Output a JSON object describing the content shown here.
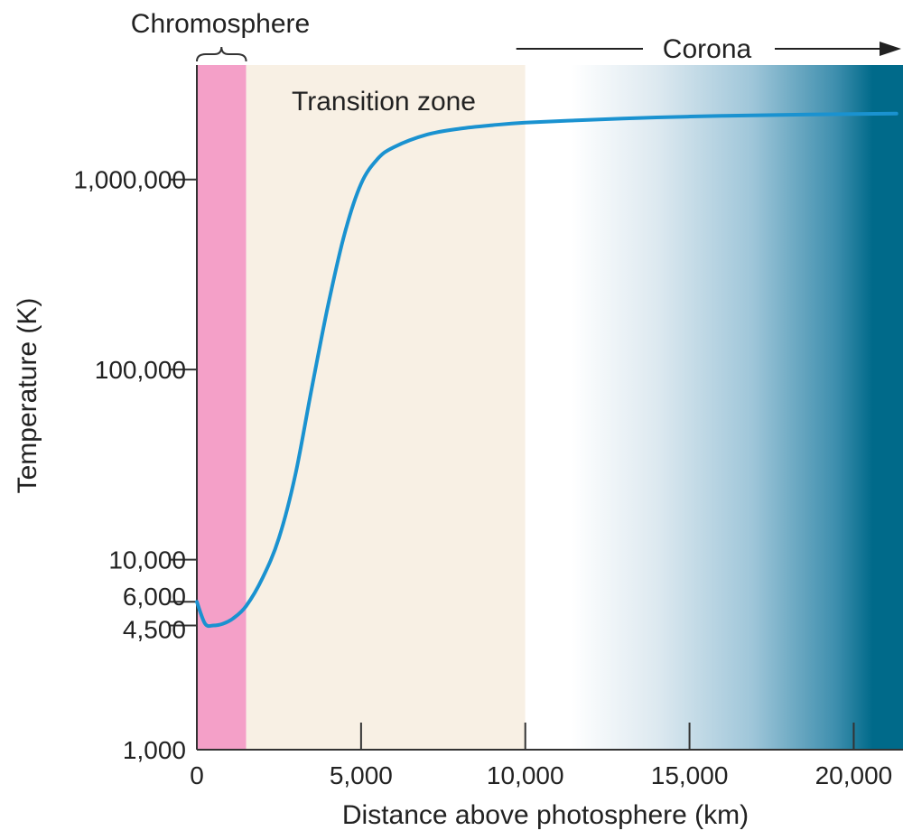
{
  "chart_data": {
    "type": "line",
    "title": "",
    "xlabel": "Distance above photosphere (km)",
    "ylabel": "Temperature (K)",
    "xlim": [
      0,
      21500
    ],
    "ylim": [
      1000,
      4000000
    ],
    "y_scale": "log",
    "grid": false,
    "x_ticks": [
      {
        "value": 0,
        "label": "0"
      },
      {
        "value": 5000,
        "label": "5,000"
      },
      {
        "value": 10000,
        "label": "10,000"
      },
      {
        "value": 15000,
        "label": "15,000"
      },
      {
        "value": 20000,
        "label": "20,000"
      }
    ],
    "y_ticks": [
      {
        "value": 1000,
        "label": "1,000"
      },
      {
        "value": 4500,
        "label": "4,500"
      },
      {
        "value": 6000,
        "label": "6,000"
      },
      {
        "value": 10000,
        "label": "10,000"
      },
      {
        "value": 100000,
        "label": "100,000"
      },
      {
        "value": 1000000,
        "label": "1,000,000"
      }
    ],
    "regions": [
      {
        "name": "Chromosphere",
        "x_start": 0,
        "x_end": 1500,
        "color": "#f4a0c8"
      },
      {
        "name": "Transition zone",
        "x_start": 1500,
        "x_end": 10000,
        "color": "#f8f0e4"
      },
      {
        "name": "Corona",
        "x_start": 10000,
        "x_end": 21500,
        "color": "#006a8a"
      }
    ],
    "series": [
      {
        "color": "#1a92d0",
        "x": [
          0,
          250,
          500,
          800,
          1100,
          1500,
          2000,
          2500,
          3000,
          3500,
          4000,
          4500,
          5000,
          5500,
          6000,
          7000,
          8000,
          9000,
          10000,
          12000,
          14000,
          16000,
          18000,
          20000,
          21300
        ],
        "y": [
          6000,
          4600,
          4500,
          4600,
          4900,
          5700,
          8000,
          13000,
          28000,
          80000,
          220000,
          520000,
          950000,
          1280000,
          1480000,
          1720000,
          1850000,
          1930000,
          1990000,
          2060000,
          2120000,
          2160000,
          2190000,
          2210000,
          2220000
        ]
      }
    ]
  }
}
